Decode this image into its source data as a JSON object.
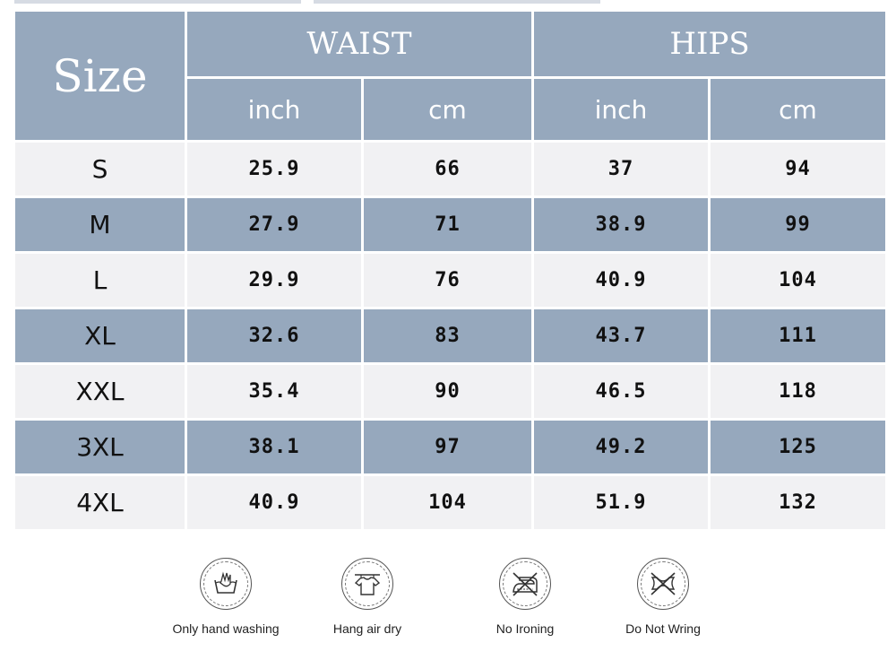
{
  "header": {
    "size_label": "Size",
    "groups": [
      "WAIST",
      "HIPS"
    ],
    "units": [
      "inch",
      "cm",
      "inch",
      "cm"
    ]
  },
  "rows": [
    {
      "size": "S",
      "waist_inch": "25.9",
      "waist_cm": "66",
      "hips_inch": "37",
      "hips_cm": "94"
    },
    {
      "size": "M",
      "waist_inch": "27.9",
      "waist_cm": "71",
      "hips_inch": "38.9",
      "hips_cm": "99"
    },
    {
      "size": "L",
      "waist_inch": "29.9",
      "waist_cm": "76",
      "hips_inch": "40.9",
      "hips_cm": "104"
    },
    {
      "size": "XL",
      "waist_inch": "32.6",
      "waist_cm": "83",
      "hips_inch": "43.7",
      "hips_cm": "111"
    },
    {
      "size": "XXL",
      "waist_inch": "35.4",
      "waist_cm": "90",
      "hips_inch": "46.5",
      "hips_cm": "118"
    },
    {
      "size": "3XL",
      "waist_inch": "38.1",
      "waist_cm": "97",
      "hips_inch": "49.2",
      "hips_cm": "125"
    },
    {
      "size": "4XL",
      "waist_inch": "40.9",
      "waist_cm": "104",
      "hips_inch": "51.9",
      "hips_cm": "132"
    }
  ],
  "care": [
    {
      "icon": "hand-wash-icon",
      "label": "Only hand washing"
    },
    {
      "icon": "hang-dry-icon",
      "label": "Hang air dry"
    },
    {
      "icon": "no-iron-icon",
      "label": "No Ironing"
    },
    {
      "icon": "no-wring-icon",
      "label": "Do Not Wring"
    }
  ],
  "colors": {
    "header_bg": "#96a8bd",
    "light_row_bg": "#f1f1f3",
    "text": "#111111"
  }
}
